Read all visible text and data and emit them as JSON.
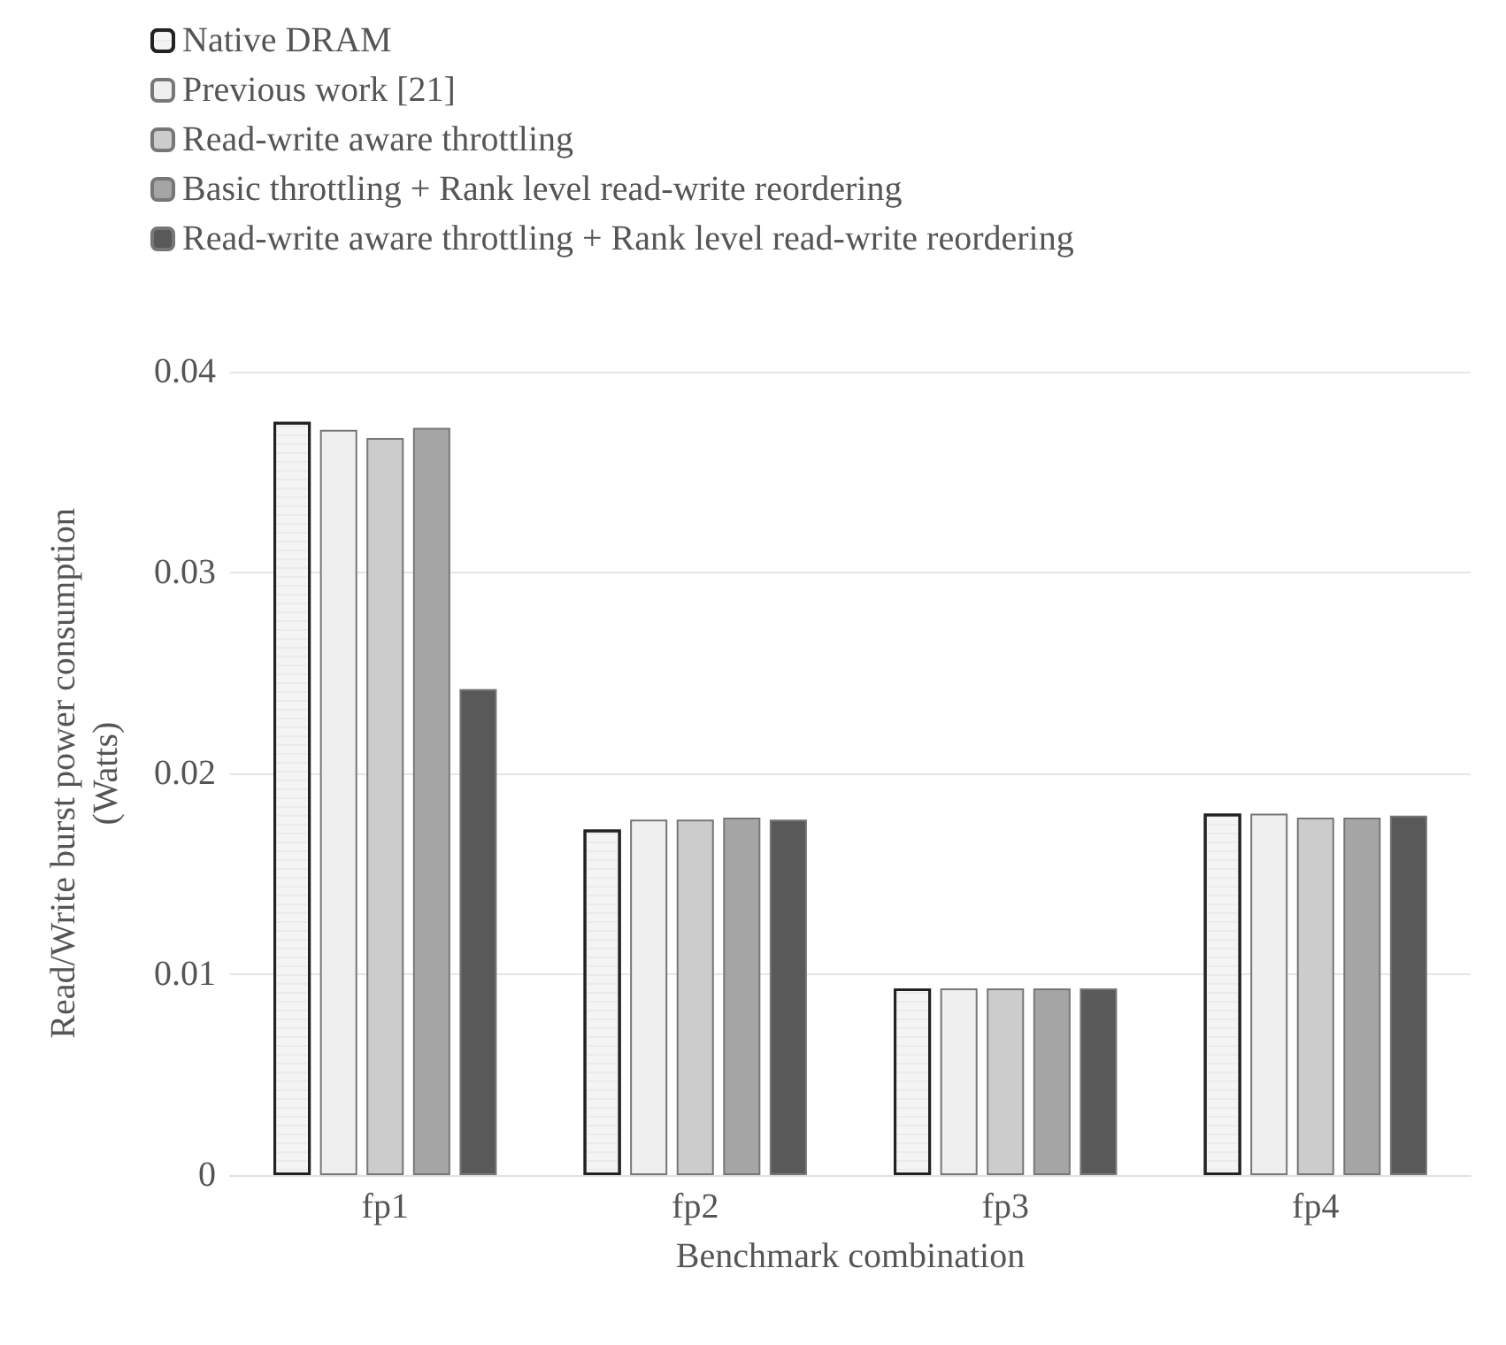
{
  "chart_data": {
    "type": "bar",
    "xlabel": "Benchmark combination",
    "ylabel": "Read/Write burst power consumption\n(Watts)",
    "categories": [
      "fp1",
      "fp2",
      "fp3",
      "fp4"
    ],
    "series": [
      {
        "name": "Native DRAM",
        "color": "#f4f4f4",
        "values": [
          0.0375,
          0.0172,
          0.0093,
          0.018
        ]
      },
      {
        "name": "Previous work [21]",
        "color": "#efefef",
        "values": [
          0.0371,
          0.0177,
          0.0093,
          0.018
        ]
      },
      {
        "name": "Read-write aware throttling",
        "color": "#cccccc",
        "values": [
          0.0367,
          0.0177,
          0.0093,
          0.0178
        ]
      },
      {
        "name": "Basic throttling + Rank level read-write reordering",
        "color": "#a5a5a5",
        "values": [
          0.0372,
          0.0178,
          0.0093,
          0.0178
        ]
      },
      {
        "name": "Read-write aware throttling + Rank level read-write reordering",
        "color": "#595959",
        "values": [
          0.0242,
          0.0177,
          0.0093,
          0.0179
        ]
      }
    ],
    "ylim": [
      0,
      0.04
    ],
    "yticks": [
      0,
      0.01,
      0.02,
      0.03,
      0.04
    ],
    "grid": "y",
    "legend": "top left"
  }
}
